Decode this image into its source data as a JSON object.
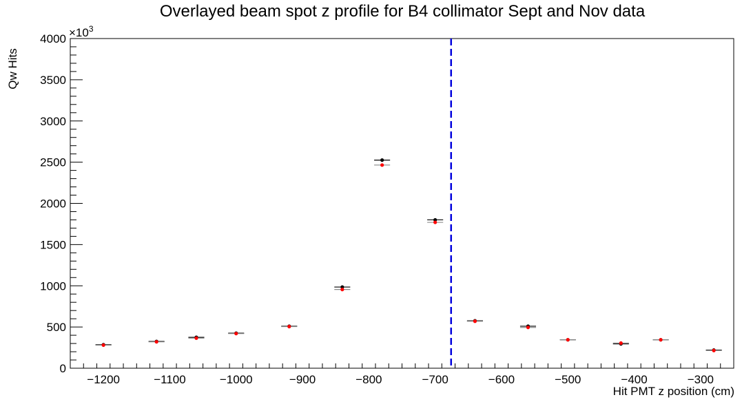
{
  "chart_data": {
    "type": "scatter",
    "title": "Overlayed beam spot z profile for B4 collimator Sept and Nov data",
    "xlabel": "Hit PMT z position (cm)",
    "ylabel": "Qw Hits",
    "y_multiplier_label": "×10",
    "y_multiplier_exp": "3",
    "xlim": [
      -1250,
      -250
    ],
    "ylim": [
      0,
      4000
    ],
    "x_ticks": [
      -1200,
      -1100,
      -1000,
      -900,
      -800,
      -700,
      -600,
      -500,
      -400,
      -300
    ],
    "x_tick_labels": [
      "−1200",
      "−1100",
      "−1000",
      "−900",
      "−800",
      "−700",
      "−600",
      "−500",
      "−400",
      "−300"
    ],
    "y_ticks": [
      0,
      500,
      1000,
      1500,
      2000,
      2500,
      3000,
      3500,
      4000
    ],
    "y_tick_labels": [
      "0",
      "500",
      "1000",
      "1500",
      "2000",
      "2500",
      "3000",
      "3500",
      "4000"
    ],
    "grid": false,
    "vertical_line": {
      "x": -676,
      "color": "#0000dd",
      "style": "dashed"
    },
    "x_error_half_width": 12,
    "series": [
      {
        "color": "#000000",
        "x": [
          -1200,
          -1120,
          -1060,
          -1000,
          -920,
          -840,
          -780,
          -700,
          -640,
          -560,
          -500,
          -420,
          -360,
          -280
        ],
        "y": [
          285,
          325,
          375,
          425,
          510,
          985,
          2525,
          1800,
          575,
          510,
          345,
          295,
          345,
          220
        ]
      },
      {
        "color": "#ff0000",
        "x": [
          -1200,
          -1120,
          -1060,
          -1000,
          -920,
          -840,
          -780,
          -700,
          -640,
          -560,
          -500,
          -420,
          -360,
          -280
        ],
        "y": [
          280,
          320,
          365,
          420,
          505,
          955,
          2465,
          1770,
          570,
          495,
          345,
          305,
          345,
          215
        ]
      }
    ]
  }
}
